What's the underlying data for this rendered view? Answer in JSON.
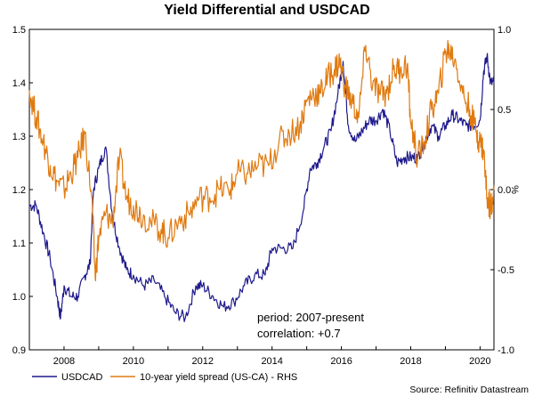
{
  "chart_data": {
    "type": "line",
    "title": "Yield Differential and USDCAD",
    "x_ticks": [
      "2008",
      "2010",
      "2012",
      "2014",
      "2016",
      "2018",
      "2020"
    ],
    "x_range": [
      2007.0,
      2020.4
    ],
    "left_axis": {
      "ylim": [
        0.9,
        1.5
      ],
      "ticks": [
        "0.9",
        "1.0",
        "1.1",
        "1.2",
        "1.3",
        "1.4",
        "1.5"
      ]
    },
    "right_axis": {
      "label": "%",
      "ylim": [
        -1.0,
        1.0
      ],
      "ticks": [
        "-1.0",
        "-0.5",
        "0.0",
        "0.5",
        "1.0"
      ]
    },
    "series": [
      {
        "name": "USDCAD",
        "axis": "left",
        "color": "#1f1a8c",
        "x": [
          2007.0,
          2007.2,
          2007.4,
          2007.6,
          2007.8,
          2007.9,
          2008.0,
          2008.2,
          2008.4,
          2008.6,
          2008.75,
          2008.85,
          2009.0,
          2009.2,
          2009.4,
          2009.6,
          2009.8,
          2010.0,
          2010.3,
          2010.6,
          2010.9,
          2011.2,
          2011.5,
          2011.8,
          2012.0,
          2012.3,
          2012.6,
          2012.9,
          2013.2,
          2013.5,
          2013.8,
          2014.0,
          2014.3,
          2014.6,
          2014.9,
          2015.1,
          2015.3,
          2015.5,
          2015.7,
          2015.9,
          2016.05,
          2016.2,
          2016.4,
          2016.6,
          2016.8,
          2017.0,
          2017.2,
          2017.4,
          2017.6,
          2017.8,
          2018.0,
          2018.2,
          2018.4,
          2018.6,
          2018.8,
          2019.0,
          2019.2,
          2019.4,
          2019.6,
          2019.8,
          2020.0,
          2020.1,
          2020.2,
          2020.3,
          2020.4
        ],
        "values": [
          1.17,
          1.17,
          1.12,
          1.07,
          1.0,
          0.96,
          1.02,
          1.0,
          1.0,
          1.04,
          1.06,
          1.2,
          1.24,
          1.28,
          1.15,
          1.09,
          1.05,
          1.04,
          1.02,
          1.03,
          1.0,
          0.97,
          0.96,
          1.02,
          1.02,
          1.0,
          0.98,
          0.99,
          1.02,
          1.04,
          1.04,
          1.09,
          1.09,
          1.09,
          1.16,
          1.24,
          1.25,
          1.28,
          1.31,
          1.38,
          1.44,
          1.32,
          1.29,
          1.31,
          1.33,
          1.33,
          1.35,
          1.31,
          1.25,
          1.26,
          1.26,
          1.26,
          1.29,
          1.32,
          1.3,
          1.32,
          1.34,
          1.33,
          1.32,
          1.32,
          1.33,
          1.42,
          1.45,
          1.4,
          1.4
        ]
      },
      {
        "name": "10-year yield spread (US-CA) - RHS",
        "axis": "right",
        "color": "#e07a10",
        "x": [
          2007.0,
          2007.2,
          2007.4,
          2007.6,
          2007.8,
          2008.0,
          2008.2,
          2008.4,
          2008.6,
          2008.8,
          2008.9,
          2009.0,
          2009.2,
          2009.4,
          2009.6,
          2009.8,
          2010.0,
          2010.2,
          2010.5,
          2010.8,
          2011.0,
          2011.3,
          2011.6,
          2011.9,
          2012.2,
          2012.5,
          2012.8,
          2013.0,
          2013.3,
          2013.6,
          2013.9,
          2014.2,
          2014.5,
          2014.8,
          2015.0,
          2015.2,
          2015.4,
          2015.6,
          2015.8,
          2015.95,
          2016.1,
          2016.3,
          2016.5,
          2016.7,
          2016.9,
          2017.1,
          2017.3,
          2017.5,
          2017.7,
          2017.9,
          2018.0,
          2018.2,
          2018.4,
          2018.6,
          2018.8,
          2019.0,
          2019.1,
          2019.3,
          2019.5,
          2019.7,
          2019.9,
          2020.0,
          2020.1,
          2020.2,
          2020.3,
          2020.4
        ],
        "values": [
          0.62,
          0.45,
          0.3,
          0.15,
          0.05,
          0.0,
          0.1,
          0.2,
          0.35,
          -0.05,
          -0.55,
          -0.3,
          -0.15,
          -0.2,
          0.2,
          -0.05,
          -0.1,
          -0.15,
          -0.2,
          -0.25,
          -0.3,
          -0.2,
          -0.15,
          -0.05,
          -0.05,
          0.0,
          0.0,
          0.1,
          0.1,
          0.15,
          0.15,
          0.3,
          0.35,
          0.4,
          0.55,
          0.6,
          0.6,
          0.7,
          0.75,
          0.8,
          0.65,
          0.55,
          0.45,
          0.9,
          0.65,
          0.6,
          0.6,
          0.75,
          0.75,
          0.78,
          0.42,
          0.2,
          0.3,
          0.5,
          0.6,
          0.85,
          0.88,
          0.8,
          0.6,
          0.5,
          0.35,
          0.3,
          0.25,
          -0.05,
          -0.1,
          0.0
        ]
      }
    ],
    "annotations": [
      "period: 2007-present",
      "correlation: +0.7"
    ],
    "legend_placement": "bottom-left",
    "source": "Source: Refinitiv Datastream",
    "grid": false
  }
}
